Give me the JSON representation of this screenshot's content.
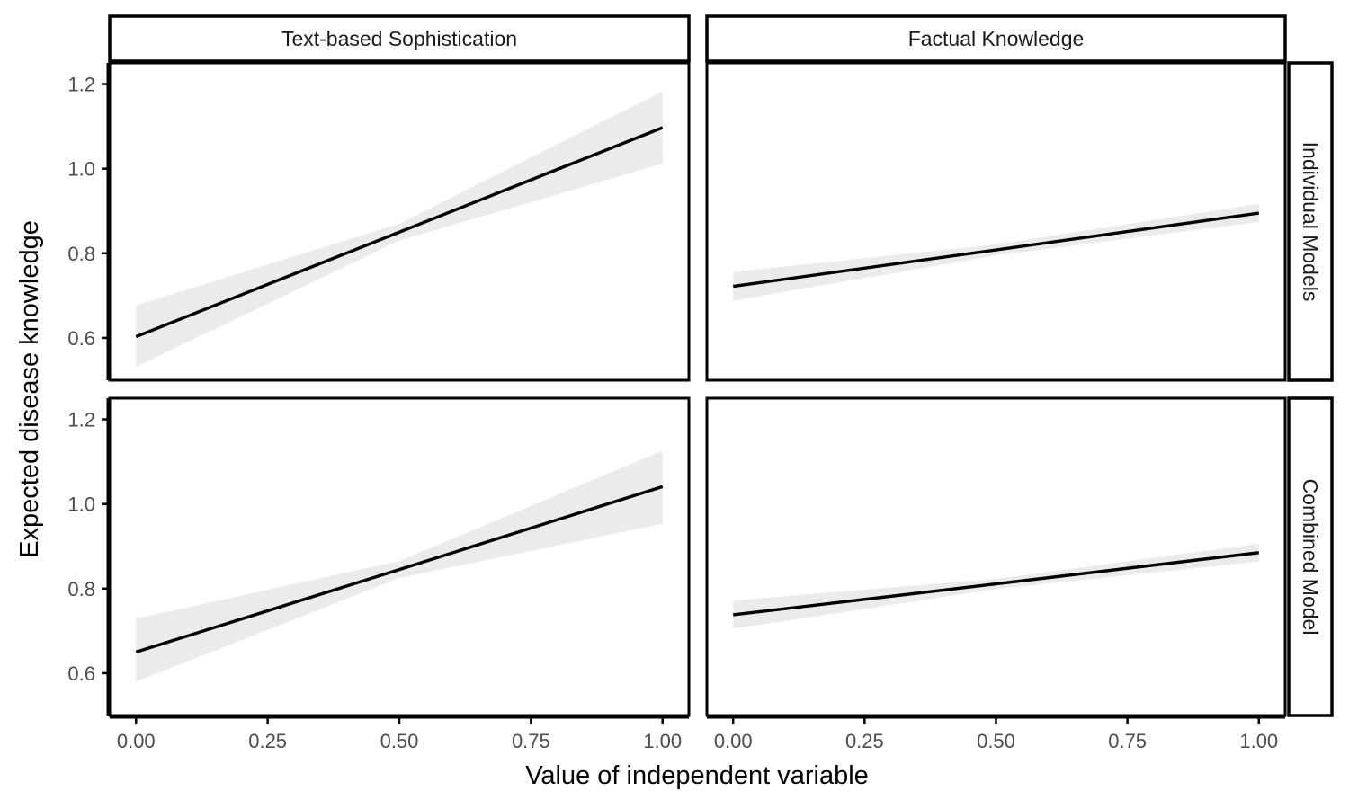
{
  "chart_data": {
    "type": "line",
    "xlabel": "Value of independent variable",
    "ylabel": "Expected disease knowledge",
    "columns": [
      "Text-based Sophistication",
      "Factual Knowledge"
    ],
    "rows": [
      "Individual Models",
      "Combined Model"
    ],
    "xlim": [
      -0.05,
      1.05
    ],
    "ylim": [
      0.5,
      1.25
    ],
    "x_ticks": [
      0.0,
      0.25,
      0.5,
      0.75,
      1.0
    ],
    "x_tick_labels": [
      "0.00",
      "0.25",
      "0.50",
      "0.75",
      "1.00"
    ],
    "y_ticks": [
      0.6,
      0.8,
      1.0,
      1.2
    ],
    "y_tick_labels": [
      "0.6",
      "0.8",
      "1.0",
      "1.2"
    ],
    "grid": false,
    "colors": {
      "line": "#000000",
      "ribbon": "#ebebeb",
      "frame": "#000000"
    },
    "panels": [
      {
        "column": "Text-based Sophistication",
        "row": "Individual Models",
        "x": [
          0.0,
          0.5,
          1.0
        ],
        "fit": [
          0.603,
          0.85,
          1.097
        ],
        "lower": [
          0.532,
          0.83,
          1.012
        ],
        "upper": [
          0.677,
          0.87,
          1.183
        ]
      },
      {
        "column": "Factual Knowledge",
        "row": "Individual Models",
        "x": [
          0.0,
          0.5,
          1.0
        ],
        "fit": [
          0.722,
          0.808,
          0.895
        ],
        "lower": [
          0.688,
          0.795,
          0.874
        ],
        "upper": [
          0.756,
          0.821,
          0.917
        ]
      },
      {
        "column": "Text-based Sophistication",
        "row": "Combined Model",
        "x": [
          0.0,
          0.5,
          1.0
        ],
        "fit": [
          0.65,
          0.845,
          1.041
        ],
        "lower": [
          0.58,
          0.825,
          0.953
        ],
        "upper": [
          0.729,
          0.865,
          1.126
        ]
      },
      {
        "column": "Factual Knowledge",
        "row": "Combined Model",
        "x": [
          0.0,
          0.5,
          1.0
        ],
        "fit": [
          0.738,
          0.811,
          0.885
        ],
        "lower": [
          0.705,
          0.799,
          0.864
        ],
        "upper": [
          0.772,
          0.823,
          0.906
        ]
      }
    ]
  }
}
